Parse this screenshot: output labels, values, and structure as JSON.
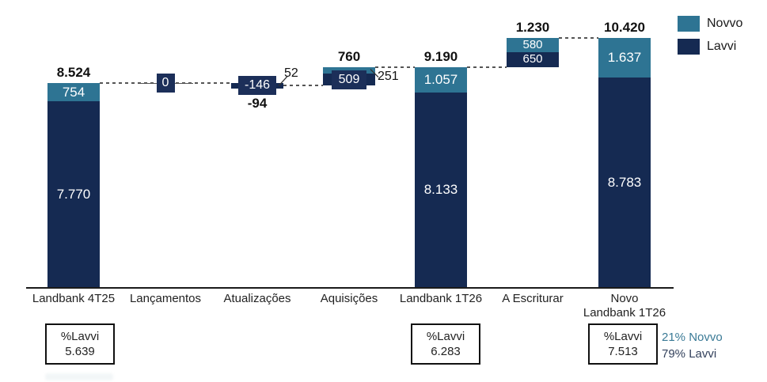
{
  "chart_data": {
    "type": "waterfall",
    "title": "",
    "axis": {
      "top_value": 10420,
      "baseline_value": 0,
      "gridlines": false
    },
    "series": [
      {
        "name": "Novvo",
        "color": "#2E7493"
      },
      {
        "name": "Lavvi",
        "color": "#152A52"
      }
    ],
    "columns": [
      {
        "id": "landbank-4t25",
        "axis_label_lines": [
          "Landbank 4T25"
        ],
        "kind": "stacked",
        "total": 8524,
        "total_label": "8.524",
        "segments": [
          {
            "series": "lavvi",
            "value": 7770,
            "label": "7.770"
          },
          {
            "series": "novvo",
            "value": 754,
            "label": "754"
          }
        ]
      },
      {
        "id": "lancamentos",
        "axis_label_lines": [
          "Lançamentos"
        ],
        "kind": "connector-box",
        "value": 0,
        "box_label": "0",
        "level": 8524
      },
      {
        "id": "atualizacoes",
        "axis_label_lines": [
          "Atualizações"
        ],
        "kind": "delta",
        "start": 8524,
        "end": 8430,
        "net": -94,
        "net_label": "-94",
        "lavvi_value": -146,
        "lavvi_label": "-146",
        "novvo_value": 52,
        "novvo_label": "52"
      },
      {
        "id": "aquisicoes",
        "axis_label_lines": [
          "Aquisições"
        ],
        "kind": "delta",
        "start": 8430,
        "end": 9190,
        "net": 760,
        "net_label": "760",
        "lavvi_value": 509,
        "lavvi_label": "509",
        "novvo_value": 251,
        "novvo_label": "251"
      },
      {
        "id": "landbank-1t26",
        "axis_label_lines": [
          "Landbank 1T26"
        ],
        "kind": "stacked",
        "total": 9190,
        "total_label": "9.190",
        "segments": [
          {
            "series": "lavvi",
            "value": 8133,
            "label": "8.133"
          },
          {
            "series": "novvo",
            "value": 1057,
            "label": "1.057"
          }
        ]
      },
      {
        "id": "a-escriturar",
        "axis_label_lines": [
          "A Escriturar"
        ],
        "kind": "floating",
        "bottom": 9190,
        "total": 1230,
        "total_label": "1.230",
        "segments": [
          {
            "series": "lavvi",
            "value": 650,
            "label": "650"
          },
          {
            "series": "novvo",
            "value": 580,
            "label": "580"
          }
        ]
      },
      {
        "id": "novo-landbank-1t26",
        "axis_label_lines": [
          "Novo",
          "Landbank 1T26"
        ],
        "kind": "stacked",
        "total": 10420,
        "total_label": "10.420",
        "segments": [
          {
            "series": "lavvi",
            "value": 8783,
            "label": "8.783"
          },
          {
            "series": "novvo",
            "value": 1637,
            "label": "1.637"
          }
        ]
      }
    ]
  },
  "legend": {
    "items": [
      {
        "label": "Novvo",
        "series": "novvo"
      },
      {
        "label": "Lavvi",
        "series": "lavvi"
      }
    ]
  },
  "footer_boxes": [
    {
      "column": "landbank-4t25",
      "title": "%Lavvi",
      "value": "5.639"
    },
    {
      "column": "landbank-1t26",
      "title": "%Lavvi",
      "value": "6.283"
    },
    {
      "column": "novo-landbank-1t26",
      "title": "%Lavvi",
      "value": "7.513",
      "notes": [
        {
          "text": "21% Novvo",
          "series": "novvo"
        },
        {
          "text": "79% Lavvi",
          "series": "lavvi"
        }
      ]
    }
  ],
  "colors": {
    "novvo": "#2E7493",
    "lavvi": "#152A52",
    "box_navy": "#1C2F59",
    "note_novvo": "#3A7A96",
    "note_lavvi": "#33415C",
    "text": "#111111",
    "connector": "#555555"
  }
}
